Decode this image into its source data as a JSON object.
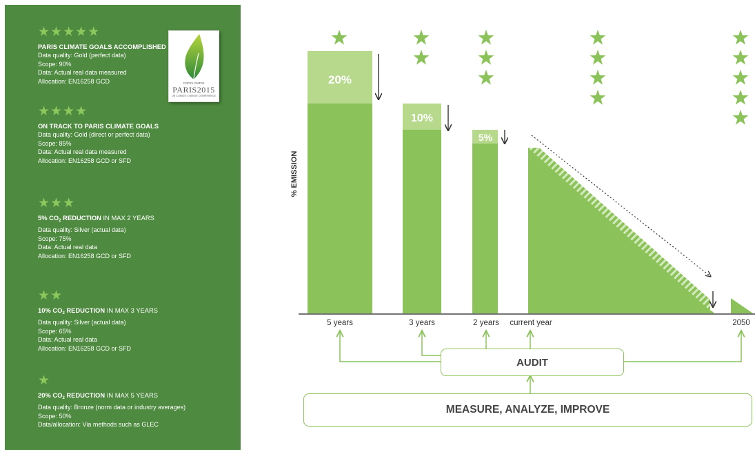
{
  "colors": {
    "panel_bg": "#4e8a3f",
    "star": "#8cc85d",
    "bar": "#8bc35a",
    "bar_light": "#b6d98b",
    "text_dark": "#333333"
  },
  "levels": [
    {
      "stars": "★★★★★",
      "title_bold": "PARIS CLIMATE GOALS ACCOMPLISHED",
      "title_rest": "",
      "lines": [
        "Data quality: Gold (perfect data)",
        "Scope: 90%",
        "Data: Actual real data measured",
        "Allocation: EN16258 GCD"
      ]
    },
    {
      "stars": "★★★★",
      "title_bold": "ON TRACK TO PARIS CLIMATE GOALS",
      "title_rest": "",
      "lines": [
        "Data quality: Gold (direct or perfect data)",
        "Scope: 85%",
        "Data: Actual real data measured",
        "Allocation: EN16258 GCD or SFD"
      ]
    },
    {
      "stars": "★★★",
      "title_pre": "5% CO",
      "title_sub": "2",
      "title_post": " REDUCTION",
      "title_rest": " IN MAX 2 YEARS",
      "lines": [
        "Data quality: Silver (actual data)",
        "Scope: 75%",
        "Data: Actual real data",
        "Allocation: EN16258 GCD or SFD"
      ]
    },
    {
      "stars": "★★",
      "title_pre": "10% CO",
      "title_sub": "2",
      "title_post": " REDUCTION",
      "title_rest": " IN MAX 3 YEARS",
      "lines": [
        "Data quality: Silver (actual data)",
        "Scope: 65%",
        "Data: Actual real data",
        "Allocation: EN16258 GCD or SFD"
      ]
    },
    {
      "stars": "★",
      "title_pre": "20% CO",
      "title_sub": "2",
      "title_post": " REDUCTION",
      "title_rest": " IN MAX 5 YEARS",
      "lines": [
        "Data quality: Bronze (norm data or industry averages)",
        "Scope: 50%",
        "Data/allocation: Via methods such as GLEC"
      ]
    }
  ],
  "logo": {
    "small_top": "COP21·CMP11",
    "main": "PARIS2015",
    "small_bottom": "UN CLIMATE CHANGE CONFERENCE"
  },
  "chart": {
    "ylabel": "% EMISSION",
    "bars": [
      {
        "label": "5 years",
        "stars": 1,
        "reduction": "20%"
      },
      {
        "label": "3 years",
        "stars": 2,
        "reduction": "10%"
      },
      {
        "label": "2 years",
        "stars": 3,
        "reduction": "5%"
      },
      {
        "label": "current year",
        "stars": 4
      },
      {
        "label": "2050",
        "stars": 5
      }
    ]
  },
  "audit_label": "AUDIT",
  "measure_label": "MEASURE, ANALYZE, IMPROVE"
}
